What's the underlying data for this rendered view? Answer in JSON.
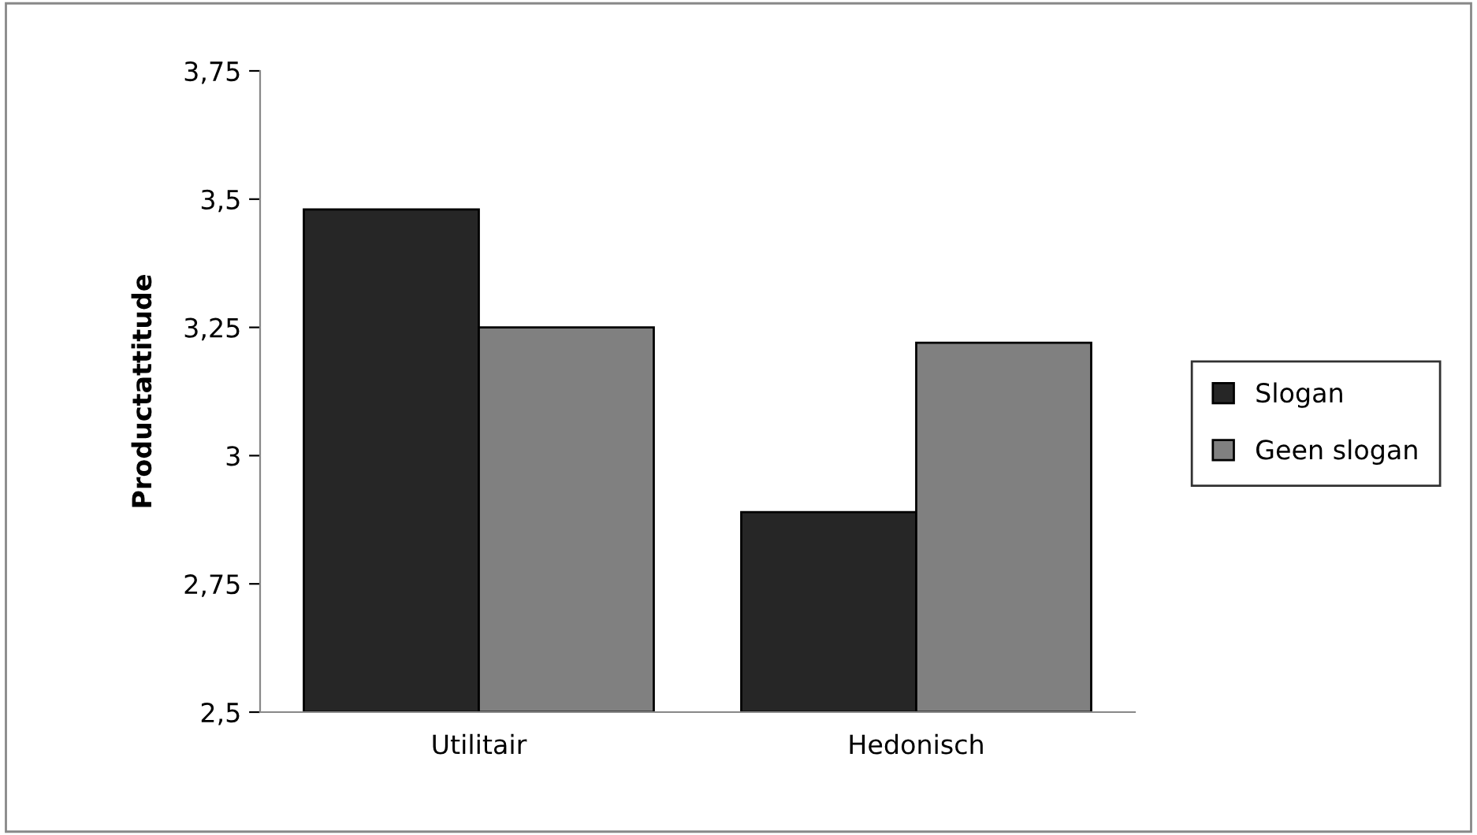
{
  "chart_data": {
    "type": "bar",
    "ylabel": "Productattitude",
    "categories": [
      "Utilitair",
      "Hedonisch"
    ],
    "series": [
      {
        "name": "Slogan",
        "color": "#262626",
        "values": [
          3.48,
          2.89
        ]
      },
      {
        "name": "Geen slogan",
        "color": "#808080",
        "values": [
          3.25,
          3.22
        ]
      }
    ],
    "ylim": [
      2.5,
      3.75
    ],
    "yticks": [
      {
        "value": 2.5,
        "label": "2,5"
      },
      {
        "value": 2.75,
        "label": "2,75"
      },
      {
        "value": 3,
        "label": "3"
      },
      {
        "value": 3.25,
        "label": "3,25"
      },
      {
        "value": 3.5,
        "label": "3,5"
      },
      {
        "value": 3.75,
        "label": "3,75"
      }
    ],
    "grid": false,
    "legend": "right"
  }
}
